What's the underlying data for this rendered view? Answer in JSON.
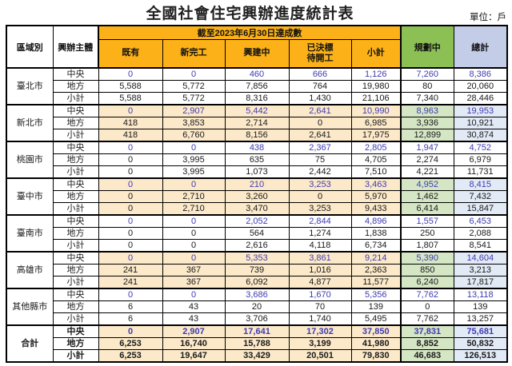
{
  "chart_data": {
    "type": "table",
    "title": "全國社會住宅興辦進度統計表",
    "unit_label": "單位：戶",
    "header": {
      "region": "區域別",
      "entity": "興辦主體",
      "achievement_group": "截至2023年6月30日達成數",
      "sub_columns": [
        {
          "key": "existing",
          "label": "既有"
        },
        {
          "key": "newly-completed",
          "label": "新完工"
        },
        {
          "key": "under-construction",
          "label": "興建中"
        },
        {
          "key": "awarded-pending-start",
          "label": "已決標\n待開工"
        },
        {
          "key": "subtotal",
          "label": "小計"
        }
      ],
      "planning": "規劃中",
      "total": "總計"
    },
    "regions": [
      {
        "name": "臺北市",
        "shaded": false,
        "bold": false,
        "rows": [
          {
            "label": "中央",
            "blue": true,
            "values": [
              "0",
              "0",
              "460",
              "666",
              "1,126",
              "7,260",
              "8,386"
            ]
          },
          {
            "label": "地方",
            "blue": false,
            "values": [
              "5,588",
              "5,772",
              "7,856",
              "764",
              "19,980",
              "80",
              "20,060"
            ]
          },
          {
            "label": "小計",
            "blue": false,
            "values": [
              "5,588",
              "5,772",
              "8,316",
              "1,430",
              "21,106",
              "7,340",
              "28,446"
            ]
          }
        ]
      },
      {
        "name": "新北市",
        "shaded": true,
        "bold": false,
        "rows": [
          {
            "label": "中央",
            "blue": true,
            "values": [
              "0",
              "2,907",
              "5,442",
              "2,641",
              "10,990",
              "8,963",
              "19,953"
            ]
          },
          {
            "label": "地方",
            "blue": false,
            "values": [
              "418",
              "3,853",
              "2,714",
              "0",
              "6,985",
              "3,936",
              "10,921"
            ]
          },
          {
            "label": "小計",
            "blue": false,
            "values": [
              "418",
              "6,760",
              "8,156",
              "2,641",
              "17,975",
              "12,899",
              "30,874"
            ]
          }
        ]
      },
      {
        "name": "桃園市",
        "shaded": false,
        "bold": false,
        "rows": [
          {
            "label": "中央",
            "blue": true,
            "values": [
              "0",
              "0",
              "438",
              "2,367",
              "2,805",
              "1,947",
              "4,752"
            ]
          },
          {
            "label": "地方",
            "blue": false,
            "values": [
              "0",
              "3,995",
              "635",
              "75",
              "4,705",
              "2,274",
              "6,979"
            ]
          },
          {
            "label": "小計",
            "blue": false,
            "values": [
              "0",
              "3,995",
              "1,073",
              "2,442",
              "7,510",
              "4,221",
              "11,731"
            ]
          }
        ]
      },
      {
        "name": "臺中市",
        "shaded": true,
        "bold": false,
        "rows": [
          {
            "label": "中央",
            "blue": true,
            "values": [
              "0",
              "0",
              "210",
              "3,253",
              "3,463",
              "4,952",
              "8,415"
            ]
          },
          {
            "label": "地方",
            "blue": false,
            "values": [
              "0",
              "2,710",
              "3,260",
              "0",
              "5,970",
              "1,462",
              "7,432"
            ]
          },
          {
            "label": "小計",
            "blue": false,
            "values": [
              "0",
              "2,710",
              "3,470",
              "3,253",
              "9,433",
              "6,414",
              "15,847"
            ]
          }
        ]
      },
      {
        "name": "臺南市",
        "shaded": false,
        "bold": false,
        "rows": [
          {
            "label": "中央",
            "blue": true,
            "values": [
              "0",
              "0",
              "2,052",
              "2,844",
              "4,896",
              "1,557",
              "6,453"
            ]
          },
          {
            "label": "地方",
            "blue": false,
            "values": [
              "0",
              "0",
              "564",
              "1,274",
              "1,838",
              "250",
              "2,088"
            ]
          },
          {
            "label": "小計",
            "blue": false,
            "values": [
              "0",
              "0",
              "2,616",
              "4,118",
              "6,734",
              "1,807",
              "8,541"
            ]
          }
        ]
      },
      {
        "name": "高雄市",
        "shaded": true,
        "bold": false,
        "rows": [
          {
            "label": "中央",
            "blue": true,
            "values": [
              "0",
              "0",
              "5,353",
              "3,861",
              "9,214",
              "5,390",
              "14,604"
            ]
          },
          {
            "label": "地方",
            "blue": false,
            "values": [
              "241",
              "367",
              "739",
              "1,016",
              "2,363",
              "850",
              "3,213"
            ]
          },
          {
            "label": "小計",
            "blue": false,
            "values": [
              "241",
              "367",
              "6,092",
              "4,877",
              "11,577",
              "6,240",
              "17,817"
            ]
          }
        ]
      },
      {
        "name": "其他縣市",
        "shaded": false,
        "bold": false,
        "rows": [
          {
            "label": "中央",
            "blue": true,
            "values": [
              "0",
              "0",
              "3,686",
              "1,670",
              "5,356",
              "7,762",
              "13,118"
            ]
          },
          {
            "label": "地方",
            "blue": false,
            "values": [
              "6",
              "43",
              "20",
              "70",
              "139",
              "0",
              "139"
            ]
          },
          {
            "label": "小計",
            "blue": false,
            "values": [
              "6",
              "43",
              "3,706",
              "1,740",
              "5,495",
              "7,762",
              "13,257"
            ]
          }
        ]
      },
      {
        "name": "合計",
        "shaded": true,
        "bold": true,
        "rows": [
          {
            "label": "中央",
            "blue": true,
            "values": [
              "0",
              "2,907",
              "17,641",
              "17,302",
              "37,850",
              "37,831",
              "75,681"
            ]
          },
          {
            "label": "地方",
            "blue": false,
            "values": [
              "6,253",
              "16,740",
              "15,788",
              "3,199",
              "41,980",
              "8,852",
              "50,832"
            ]
          },
          {
            "label": "小計",
            "blue": false,
            "values": [
              "6,253",
              "19,647",
              "33,429",
              "20,501",
              "79,830",
              "46,683",
              "126,513"
            ]
          }
        ]
      }
    ]
  },
  "colors": {
    "header_orange": "#FBB117",
    "header_green": "#8CC055",
    "header_blue": "#C3CDE8",
    "cell_cream": "#FCE9C9",
    "cell_green": "#D5E6C4",
    "cell_blue": "#E2EAF6",
    "text_blue": "#3E3BB2",
    "border_color": "#000000"
  }
}
